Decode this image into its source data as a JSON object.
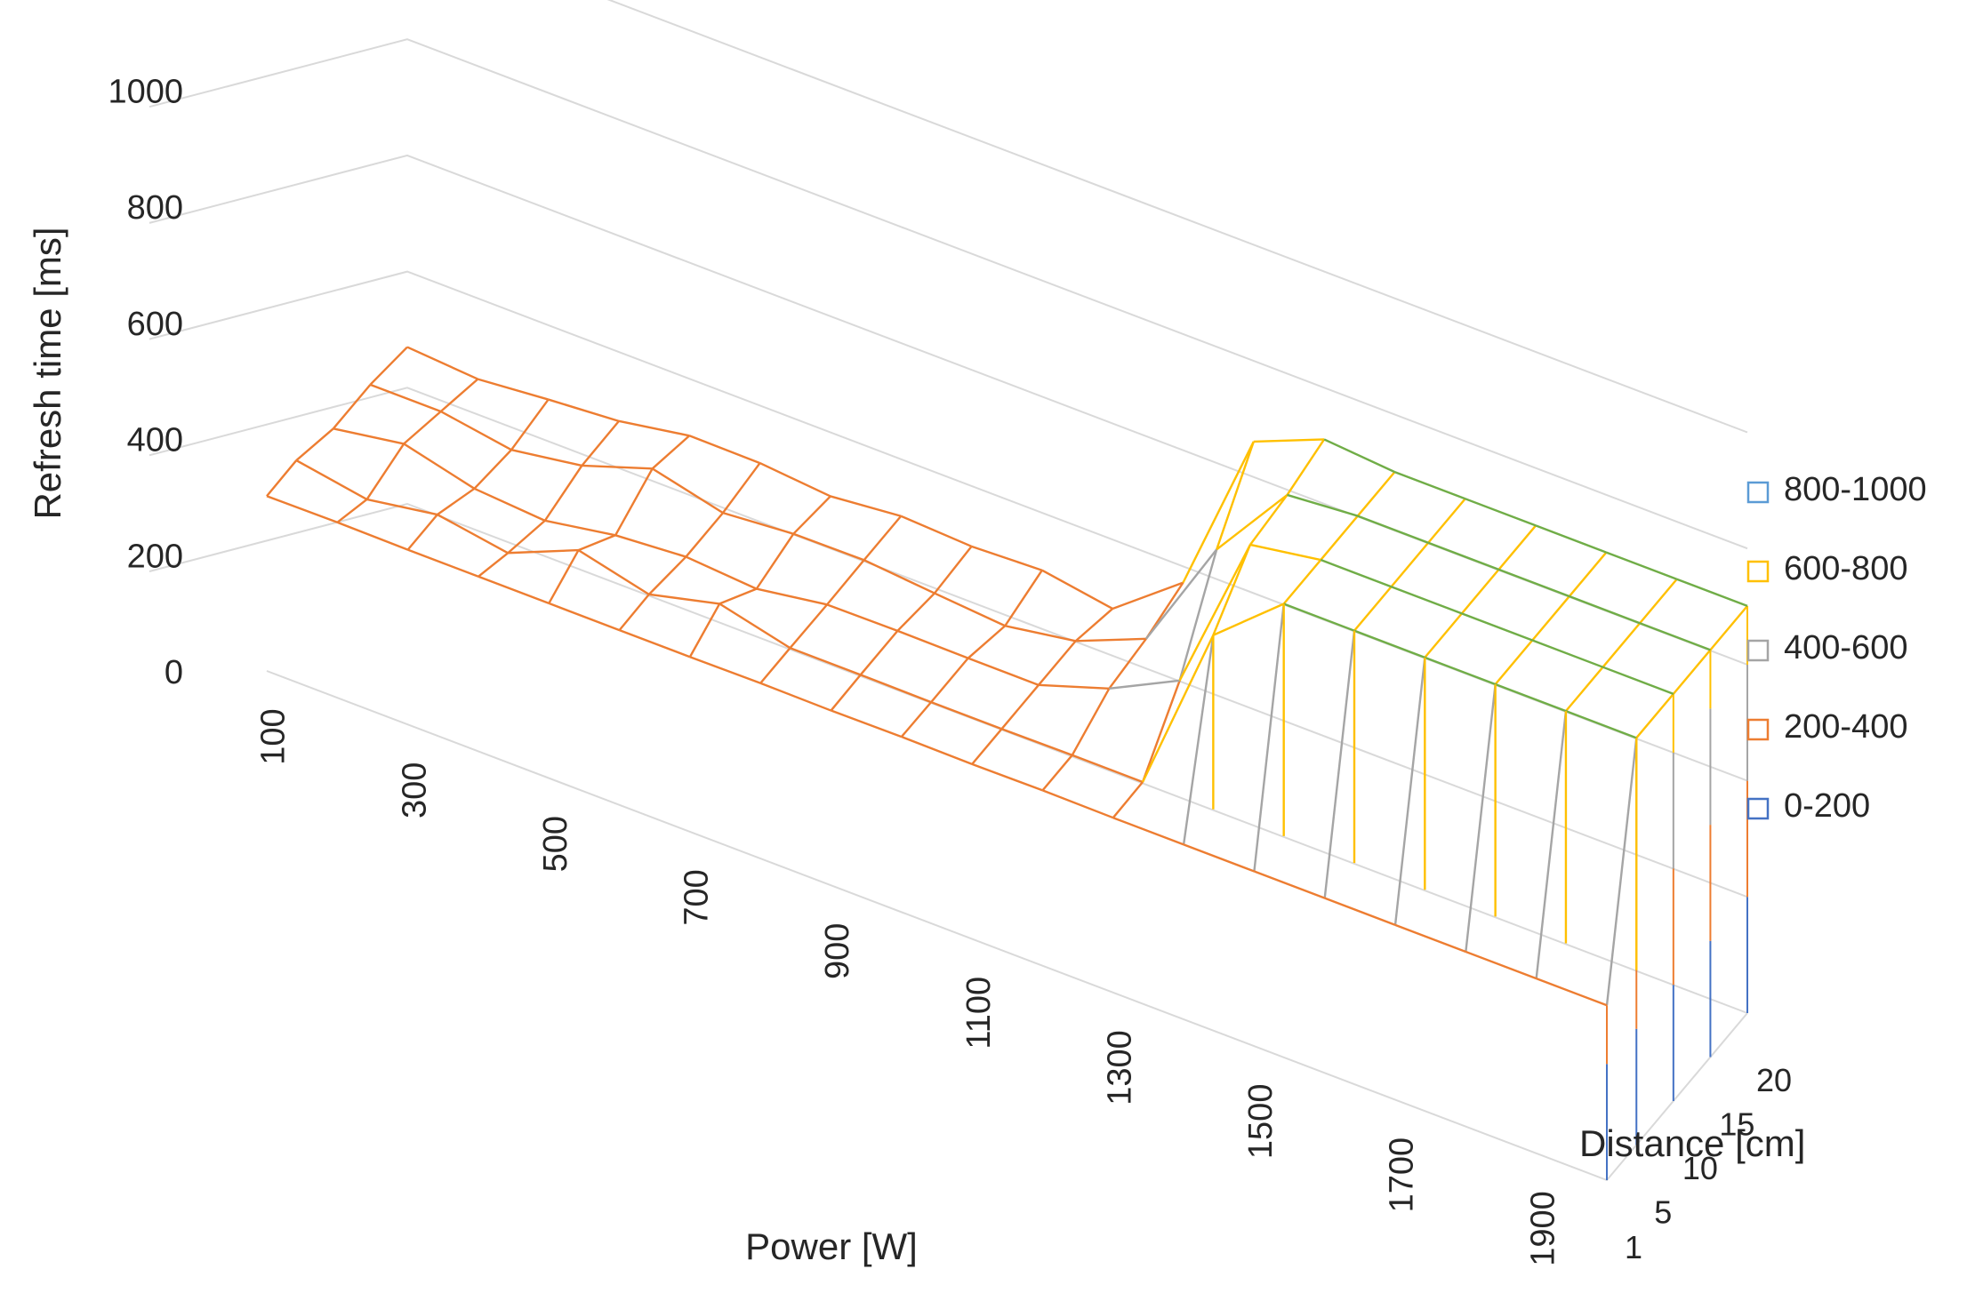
{
  "chart_data": {
    "type": "surface-wireframe",
    "title": "",
    "ylabel": "Refresh time [ms]",
    "xlabel": "Power [W]",
    "zlabel": "Distance [cm]",
    "zlim": [
      0,
      1000
    ],
    "z_ticks": [
      "0",
      "200",
      "400",
      "600",
      "800",
      "1000"
    ],
    "power_ticks": [
      "100",
      "300",
      "500",
      "700",
      "900",
      "1100",
      "1300",
      "1500",
      "1700",
      "1900"
    ],
    "distance_ticks": [
      "1",
      "5",
      "10",
      "15",
      "20"
    ],
    "power_values": [
      100,
      200,
      300,
      400,
      500,
      600,
      700,
      800,
      900,
      1000,
      1100,
      1200,
      1300,
      1400,
      1500,
      1600,
      1700,
      1800,
      1900,
      2000
    ],
    "distance_values": [
      1,
      5,
      10,
      15,
      20
    ],
    "values": [
      [
        301,
        302,
        281,
        281,
        270
      ],
      [
        302,
        281,
        301,
        281,
        261
      ],
      [
        301,
        301,
        270,
        261,
        272
      ],
      [
        301,
        281,
        261,
        280,
        281
      ],
      [
        301,
        332,
        282,
        321,
        302
      ],
      [
        301,
        302,
        291,
        291,
        301
      ],
      [
        301,
        332,
        282,
        301,
        290
      ],
      [
        302,
        302,
        301,
        302,
        302
      ],
      [
        301,
        302,
        302,
        291,
        296
      ],
      [
        302,
        301,
        301,
        281,
        301
      ],
      [
        301,
        301,
        301,
        301,
        281
      ],
      [
        302,
        302,
        341,
        351,
        372
      ],
      [
        301,
        302,
        401,
        551,
        661
      ],
      [
        301,
        601,
        681,
        691,
        711
      ],
      [
        301,
        701,
        701,
        701,
        701
      ],
      [
        301,
        701,
        701,
        701,
        701
      ],
      [
        301,
        701,
        701,
        701,
        701
      ],
      [
        301,
        701,
        701,
        701,
        701
      ],
      [
        301,
        701,
        701,
        701,
        701
      ],
      [
        301,
        701,
        701,
        701,
        701
      ]
    ],
    "legend": [
      {
        "label": "800-1000",
        "color": "#5B9BD5"
      },
      {
        "label": "600-800",
        "color": "#FFC000"
      },
      {
        "label": "400-600",
        "color": "#A5A5A5"
      },
      {
        "label": "200-400",
        "color": "#ED7D31"
      },
      {
        "label": "0-200",
        "color": "#4472C4"
      }
    ],
    "legend_position": "right",
    "band_colors": {
      "0-200": "#4472C4",
      "200-400": "#ED7D31",
      "400-600": "#A5A5A5",
      "600-800": "#FFC000",
      "800-1000": "#5B9BD5",
      "top_face": "#70AD47"
    }
  }
}
